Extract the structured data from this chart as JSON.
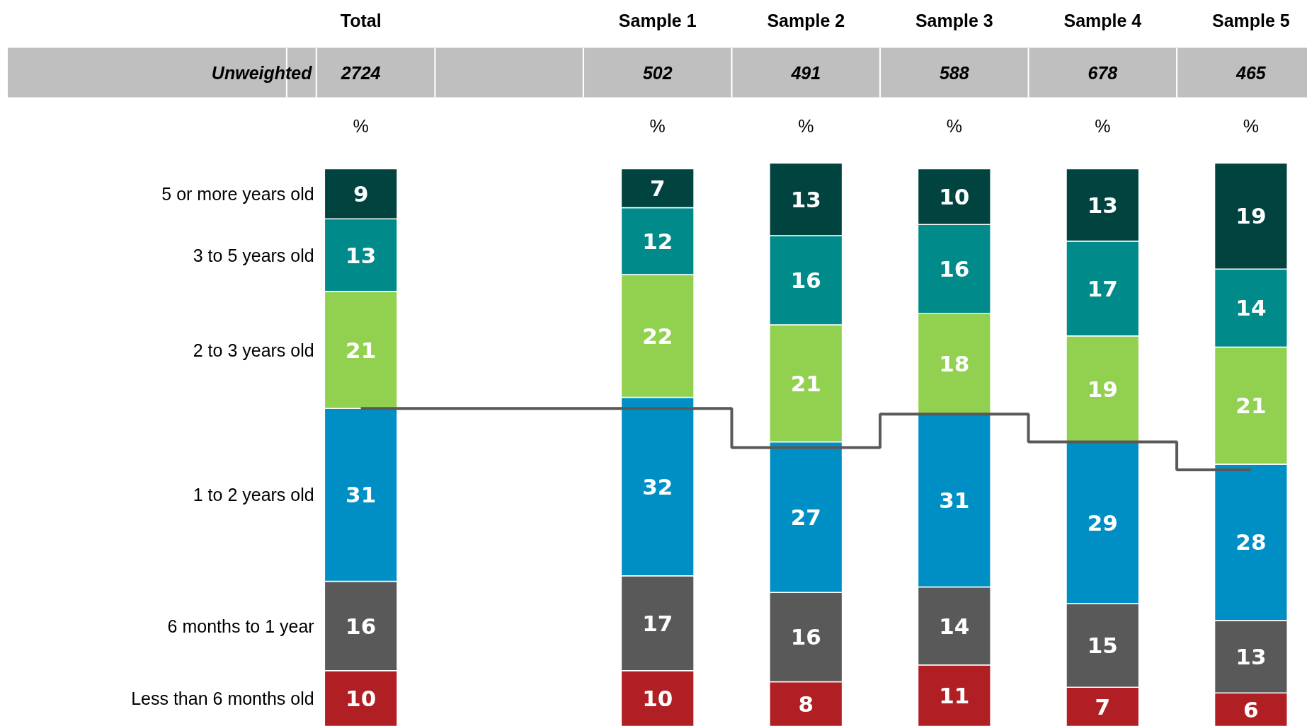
{
  "chart_data": {
    "type": "bar",
    "stacked": true,
    "tick_labels": "x",
    "ylabel": "%",
    "categories": [
      "Total",
      null,
      "Sample 1",
      "Sample 2",
      "Sample 3",
      "Sample 4",
      "Sample 5"
    ],
    "ylim": [
      0,
      101
    ],
    "series": [
      {
        "name": "Less than 6 months old",
        "color": "#b01f24",
        "values": [
          10,
          null,
          10,
          8,
          11,
          7,
          6
        ],
        "value_labels": [
          "10",
          null,
          "10",
          "8",
          "11",
          "7",
          "6"
        ]
      },
      {
        "name": "6 months to 1 year",
        "color": "#595959",
        "values": [
          16,
          null,
          17,
          16,
          14,
          15,
          13
        ],
        "value_labels": [
          "16",
          null,
          "17",
          "16",
          "14",
          "15",
          "13"
        ]
      },
      {
        "name": "1 to 2 years old",
        "color": "#008fc5",
        "values": [
          31,
          null,
          32,
          27,
          31,
          29,
          28
        ],
        "value_labels": [
          "31",
          null,
          "32",
          "27",
          "31",
          "29",
          "28"
        ]
      },
      {
        "name": "2 to 3 years old",
        "color": "#92d050",
        "values": [
          21,
          null,
          22,
          21,
          18,
          19,
          21
        ],
        "value_labels": [
          "21",
          null,
          "22",
          "21",
          "18",
          "19",
          "21"
        ]
      },
      {
        "name": "3 to 5 years old",
        "color": "#008b8a",
        "values": [
          13,
          null,
          12,
          16,
          16,
          17,
          14
        ],
        "value_labels": [
          "13",
          null,
          "12",
          "16",
          "16",
          "17",
          "14"
        ]
      },
      {
        "name": "5 or more years old",
        "color": "#00433f",
        "values": [
          9,
          null,
          7,
          13,
          10,
          13,
          19
        ],
        "value_labels": [
          "9",
          null,
          "7",
          "13",
          "10",
          "13",
          "19"
        ]
      },
      {
        "type": "step",
        "color": "#595959",
        "values": [
          57,
          57,
          57,
          50,
          56,
          51,
          46
        ]
      }
    ],
    "annotations": [
      "Unweighted",
      "2724",
      "502",
      "491",
      "588",
      "678",
      "465"
    ]
  }
}
